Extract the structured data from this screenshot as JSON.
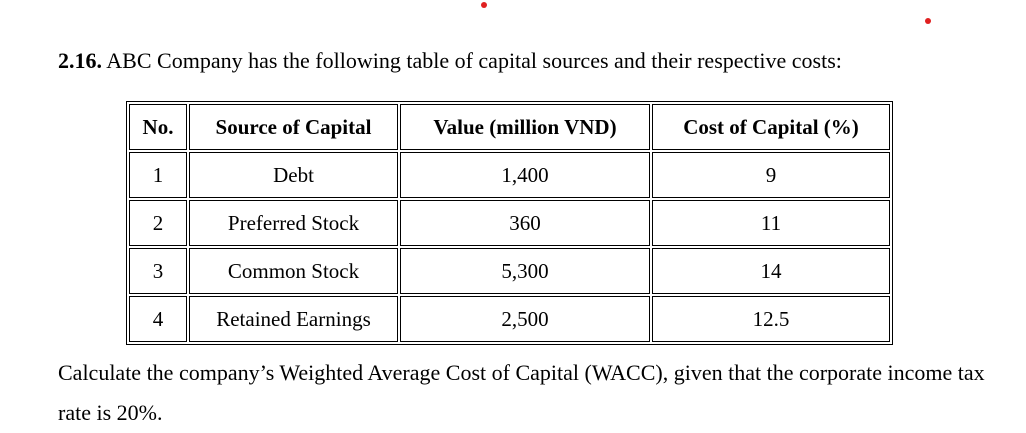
{
  "problem": {
    "number": "2.16.",
    "intro": "ABC Company has the following table of capital sources and their respective costs:",
    "table": {
      "headers": [
        "No.",
        "Source of Capital",
        "Value (million VND)",
        "Cost of Capital (%)"
      ],
      "rows": [
        {
          "no": "1",
          "source": "Debt",
          "value": "1,400",
          "cost": "9"
        },
        {
          "no": "2",
          "source": "Preferred Stock",
          "value": "360",
          "cost": "11"
        },
        {
          "no": "3",
          "source": "Common Stock",
          "value": "5,300",
          "cost": "14"
        },
        {
          "no": "4",
          "source": "Retained Earnings",
          "value": "2,500",
          "cost": "12.5"
        }
      ]
    },
    "question": "Calculate the company’s Weighted Average Cost of Capital (WACC), given that the corporate income tax rate is 20%."
  }
}
